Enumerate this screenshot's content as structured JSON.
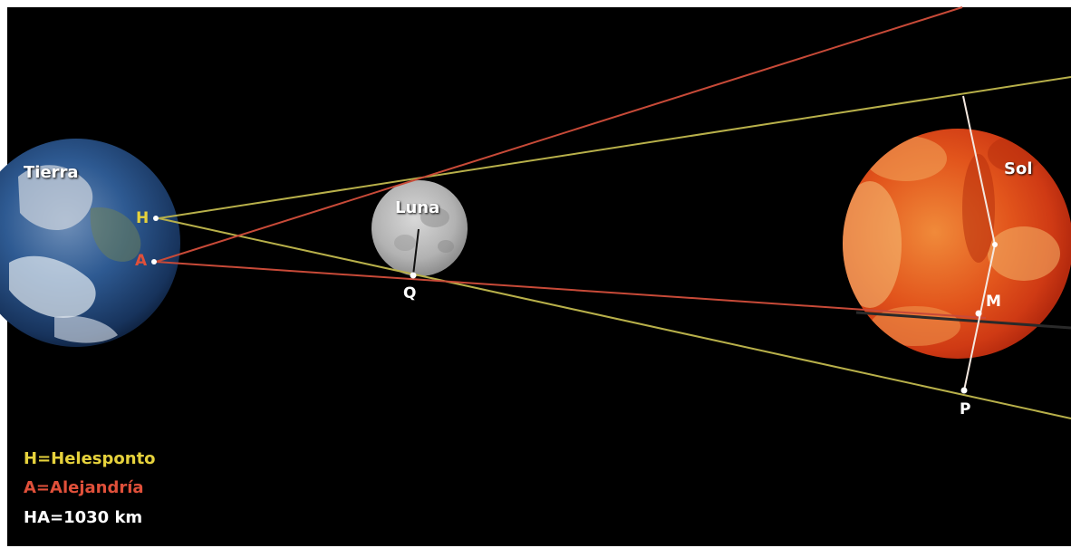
{
  "bodies": {
    "earth": "Tierra",
    "moon": "Luna",
    "sun": "Sol"
  },
  "points": {
    "H": "H",
    "A": "A",
    "Q": "Q",
    "M": "M",
    "P": "P"
  },
  "legend": {
    "h": "H=Helesponto",
    "a": "A=Alejandría",
    "distance": "HA=1030 km"
  },
  "colors": {
    "background": "#000000",
    "helesponto": "#e6d23c",
    "alejandria": "#e0503a",
    "line_yellow": "#b8b04a",
    "line_red": "#c84a38",
    "earth": "#2e5a92",
    "moon": "#b9b9b9",
    "sun": "#e2551c"
  }
}
